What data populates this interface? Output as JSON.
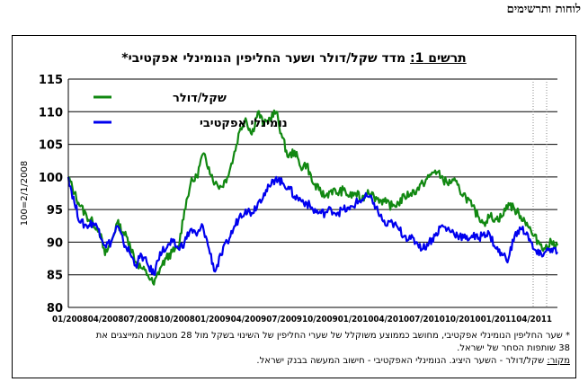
{
  "page_header": "לוחות ותרשימים",
  "chart_data": {
    "type": "line",
    "title_prefix": "תרשים 1:",
    "title_rest": "מדד שקל/דולר ושער החליפין הנומינלי אפקטיבי*",
    "ylabel": "100=2/1/2008",
    "ylim": [
      80,
      115
    ],
    "yticks": [
      80,
      85,
      90,
      95,
      100,
      105,
      110,
      115
    ],
    "grid": true,
    "legend_position": "top-left",
    "x_tick_labels": [
      "01/2008",
      "04/2008",
      "07/2008",
      "10/2008",
      "01/2009",
      "04/2009",
      "07/2009",
      "10/2009",
      "01/2010",
      "04/2010",
      "07/2010",
      "10/2010",
      "01/2011",
      "04/2011"
    ],
    "x_range": [
      0,
      40
    ],
    "series": [
      {
        "name": "שקל/דולר",
        "color": "#118811",
        "x": [
          0,
          0.5,
          1,
          1.5,
          2,
          2.5,
          3,
          3.5,
          4,
          4.5,
          5,
          5.5,
          6,
          6.5,
          7,
          7.5,
          8,
          8.5,
          9,
          9.5,
          10,
          10.5,
          11,
          11.5,
          12,
          12.5,
          13,
          13.5,
          14,
          14.5,
          15,
          15.5,
          16,
          16.5,
          17,
          17.5,
          18,
          18.5,
          19,
          19.5,
          20,
          20.5,
          21,
          21.5,
          22,
          22.5,
          23,
          23.5,
          24,
          24.5,
          25,
          25.5,
          26,
          26.5,
          27,
          27.5,
          28,
          28.5,
          29,
          29.5,
          30,
          30.5,
          31,
          31.5,
          32,
          32.5,
          33,
          33.5,
          34,
          34.5,
          35,
          35.5,
          36,
          36.5,
          37,
          37.5,
          38,
          38.5,
          39,
          39.5,
          40
        ],
        "values": [
          100,
          97.5,
          95.5,
          94,
          93,
          92,
          88,
          90,
          93,
          91.5,
          90,
          87,
          86,
          85,
          83.5,
          86,
          87.5,
          88.5,
          89,
          95,
          99,
          100,
          103.5,
          101.5,
          99,
          98.5,
          100,
          103,
          107,
          109,
          106.5,
          110,
          108,
          109,
          110,
          106,
          103,
          104,
          101.5,
          102,
          99,
          98,
          97,
          98,
          97.5,
          98,
          97,
          97.5,
          96.5,
          98,
          97,
          96.5,
          96,
          95.5,
          96,
          97,
          97.5,
          98,
          99,
          100,
          101,
          100,
          99,
          99.5,
          98,
          97,
          95.5,
          94,
          93,
          94,
          93.5,
          94,
          96,
          95,
          94,
          93,
          91,
          90,
          89,
          90,
          89.5
        ]
      },
      {
        "name": "נומינלי אפקטיבי",
        "color": "#0000ee",
        "x": [
          0,
          0.5,
          1,
          1.5,
          2,
          2.5,
          3,
          3.5,
          4,
          4.5,
          5,
          5.5,
          6,
          6.5,
          7,
          7.5,
          8,
          8.5,
          9,
          9.5,
          10,
          10.5,
          11,
          11.5,
          12,
          12.5,
          13,
          13.5,
          14,
          14.5,
          15,
          15.5,
          16,
          16.5,
          17,
          17.5,
          18,
          18.5,
          19,
          19.5,
          20,
          20.5,
          21,
          21.5,
          22,
          22.5,
          23,
          23.5,
          24,
          24.5,
          25,
          25.5,
          26,
          26.5,
          27,
          27.5,
          28,
          28.5,
          29,
          29.5,
          30,
          30.5,
          31,
          31.5,
          32,
          32.5,
          33,
          33.5,
          34,
          34.5,
          35,
          35.5,
          36,
          36.5,
          37,
          37.5,
          38,
          38.5,
          39,
          39.5,
          40
        ],
        "values": [
          100,
          96,
          93,
          92.5,
          93,
          92,
          89.5,
          90,
          92.5,
          90,
          88.5,
          86.5,
          88,
          86.5,
          85,
          88.5,
          89,
          90,
          89,
          90,
          92,
          91,
          92.5,
          89,
          85.5,
          88,
          90,
          92,
          94,
          95,
          94.5,
          96,
          97.5,
          98.5,
          100,
          99,
          98.5,
          97,
          96.5,
          96,
          95,
          94.5,
          94.5,
          95,
          94.5,
          95,
          95,
          96,
          96.5,
          97,
          96,
          94,
          92.5,
          93,
          92,
          91,
          90.5,
          90,
          89,
          90,
          91,
          92.5,
          92,
          91.5,
          91,
          90.5,
          91,
          90.5,
          91.5,
          91,
          89,
          88,
          87.5,
          91,
          92,
          91.5,
          89,
          88,
          88.5,
          89,
          88.5
        ]
      }
    ]
  },
  "footnotes": {
    "note_1": "* שער החליפין הנומינלי אפקטיבי, מחושב כממוצע משוקלל של שערי החליפין של השינוי בשקל מול 28 מטבעות המייצגים את",
    "note_2": "38 שותפות הסחר של ישראל.",
    "source_label": "מקור:",
    "source_text": "שקל/דולר - השער היציג. הנומינלי האפקטיבי - חישוב המעשה בבנק ישראל."
  }
}
